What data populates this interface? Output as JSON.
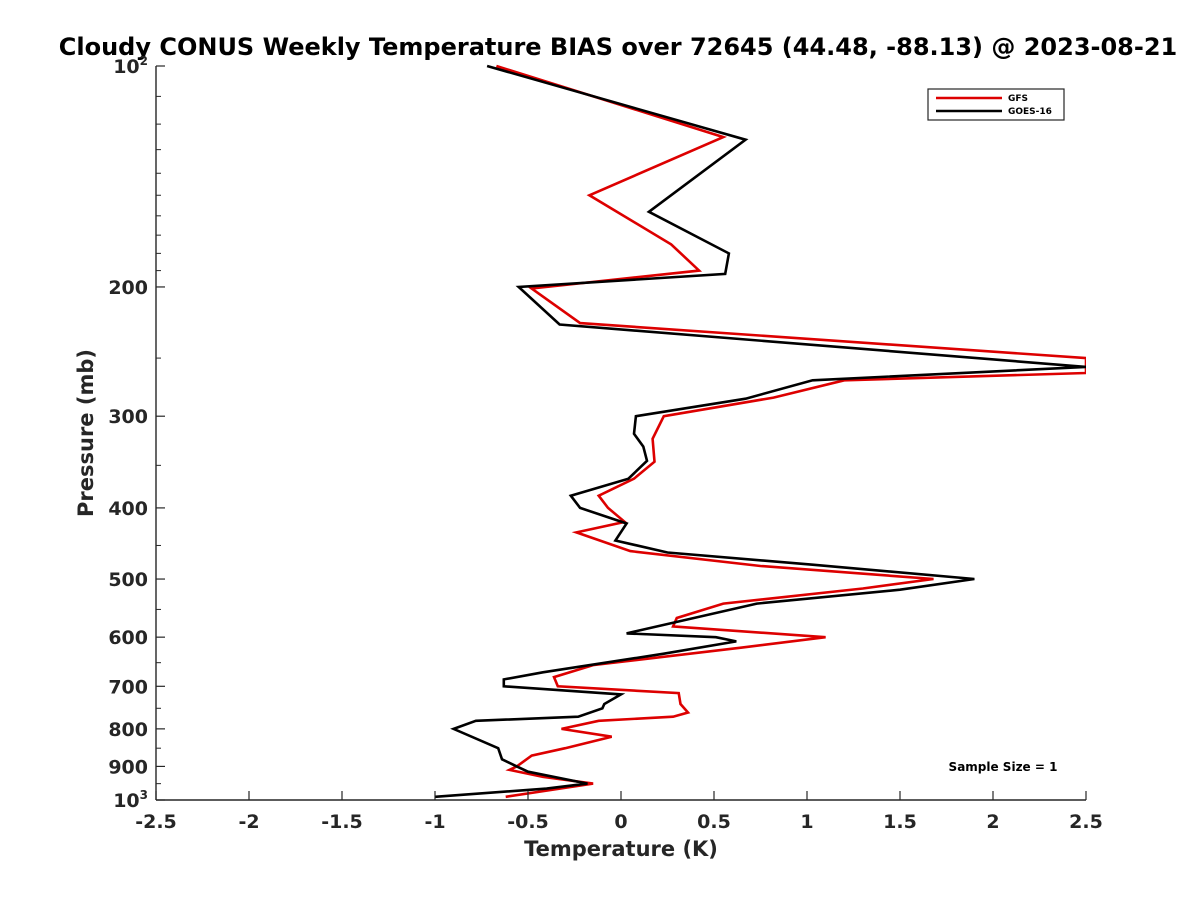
{
  "chart_data": {
    "type": "line",
    "title": "Cloudy CONUS Weekly Temperature BIAS over 72645 (44.48, -88.13) @ 2023-08-21",
    "xlabel": "Temperature (K)",
    "ylabel": "Pressure (mb)",
    "xlim": [
      -2.5,
      2.5
    ],
    "ylim": [
      100,
      1000
    ],
    "y_scale": "log",
    "y_reversed": true,
    "grid": false,
    "legend_position": "top-right",
    "x_ticks": [
      "-2.5",
      "-2",
      "-1.5",
      "-1",
      "-0.5",
      "0",
      "0.5",
      "1",
      "1.5",
      "2",
      "2.5"
    ],
    "y_ticks": [
      {
        "value": 100,
        "base": "10",
        "exp": "2"
      },
      {
        "value": 200,
        "label": "200"
      },
      {
        "value": 300,
        "label": "300"
      },
      {
        "value": 400,
        "label": "400"
      },
      {
        "value": 500,
        "label": "500"
      },
      {
        "value": 600,
        "label": "600"
      },
      {
        "value": 700,
        "label": "700"
      },
      {
        "value": 800,
        "label": "800"
      },
      {
        "value": 900,
        "label": "900"
      },
      {
        "value": 1000,
        "base": "10",
        "exp": "3"
      }
    ],
    "series": [
      {
        "name": "GFS",
        "color": "#dd0000",
        "points": [
          [
            -0.67,
            100
          ],
          [
            0.55,
            125
          ],
          [
            -0.17,
            150
          ],
          [
            0.27,
            175
          ],
          [
            0.42,
            190
          ],
          [
            -0.48,
            201
          ],
          [
            -0.22,
            224
          ],
          [
            2.5,
            250
          ],
          [
            2.5,
            262
          ],
          [
            1.2,
            268
          ],
          [
            0.82,
            283
          ],
          [
            0.23,
            300
          ],
          [
            0.17,
            322
          ],
          [
            0.18,
            346
          ],
          [
            0.07,
            365
          ],
          [
            -0.12,
            385
          ],
          [
            -0.07,
            400
          ],
          [
            0.02,
            418
          ],
          [
            -0.24,
            432
          ],
          [
            0.05,
            458
          ],
          [
            0.75,
            480
          ],
          [
            1.68,
            500
          ],
          [
            1.3,
            515
          ],
          [
            0.55,
            540
          ],
          [
            0.3,
            565
          ],
          [
            0.28,
            580
          ],
          [
            1.1,
            600
          ],
          [
            0.65,
            620
          ],
          [
            -0.15,
            655
          ],
          [
            -0.36,
            680
          ],
          [
            -0.34,
            700
          ],
          [
            0.31,
            715
          ],
          [
            0.32,
            740
          ],
          [
            0.36,
            760
          ],
          [
            0.28,
            770
          ],
          [
            -0.12,
            780
          ],
          [
            -0.32,
            800
          ],
          [
            -0.05,
            820
          ],
          [
            -0.3,
            850
          ],
          [
            -0.48,
            870
          ],
          [
            -0.56,
            900
          ],
          [
            -0.6,
            910
          ],
          [
            -0.42,
            930
          ],
          [
            -0.15,
            950
          ],
          [
            -0.62,
            990
          ]
        ]
      },
      {
        "name": "GOES-16",
        "color": "#000000",
        "points": [
          [
            -0.72,
            100
          ],
          [
            0.67,
            126
          ],
          [
            0.15,
            158
          ],
          [
            0.58,
            180
          ],
          [
            0.56,
            192
          ],
          [
            -0.55,
            200
          ],
          [
            -0.33,
            225
          ],
          [
            2.5,
            257
          ],
          [
            1.03,
            268
          ],
          [
            0.67,
            284
          ],
          [
            0.08,
            300
          ],
          [
            0.07,
            317
          ],
          [
            0.12,
            330
          ],
          [
            0.14,
            345
          ],
          [
            0.04,
            365
          ],
          [
            -0.27,
            385
          ],
          [
            -0.22,
            400
          ],
          [
            0.03,
            420
          ],
          [
            -0.03,
            443
          ],
          [
            0.25,
            460
          ],
          [
            1.03,
            478
          ],
          [
            1.9,
            500
          ],
          [
            1.5,
            517
          ],
          [
            0.73,
            540
          ],
          [
            0.03,
            593
          ],
          [
            0.51,
            600
          ],
          [
            0.62,
            608
          ],
          [
            0.23,
            632
          ],
          [
            -0.42,
            670
          ],
          [
            -0.63,
            685
          ],
          [
            -0.63,
            700
          ],
          [
            0.0,
            718
          ],
          [
            -0.09,
            740
          ],
          [
            -0.1,
            750
          ],
          [
            -0.23,
            770
          ],
          [
            -0.78,
            780
          ],
          [
            -0.9,
            800
          ],
          [
            -0.66,
            850
          ],
          [
            -0.64,
            880
          ],
          [
            -0.56,
            900
          ],
          [
            -0.5,
            915
          ],
          [
            -0.18,
            950
          ],
          [
            -0.4,
            965
          ],
          [
            -1.0,
            990
          ]
        ]
      }
    ],
    "annotations": [
      "Sample Size = 1"
    ]
  }
}
